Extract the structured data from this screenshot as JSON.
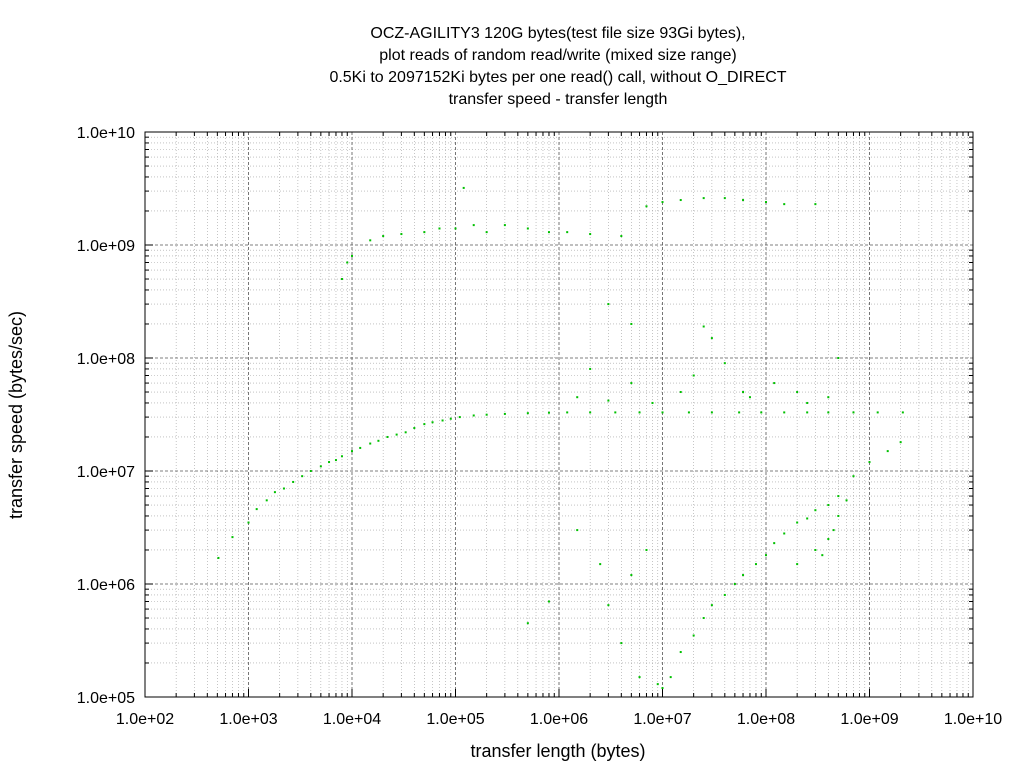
{
  "chart_data": {
    "type": "scatter",
    "title_lines": [
      "OCZ-AGILITY3 120G bytes(test file size 93Gi bytes),",
      "plot reads of random read/write (mixed size range)",
      "0.5Ki to 2097152Ki bytes per one read() call, without O_DIRECT",
      "transfer speed - transfer length"
    ],
    "xlabel": "transfer length (bytes)",
    "ylabel": "transfer speed (bytes/sec)",
    "x_scale": "log",
    "y_scale": "log",
    "xlim": [
      100,
      10000000000
    ],
    "ylim": [
      100000,
      10000000000
    ],
    "x_ticks": [
      {
        "value": 100,
        "label": "1.0e+02"
      },
      {
        "value": 1000,
        "label": "1.0e+03"
      },
      {
        "value": 10000,
        "label": "1.0e+04"
      },
      {
        "value": 100000,
        "label": "1.0e+05"
      },
      {
        "value": 1000000,
        "label": "1.0e+06"
      },
      {
        "value": 10000000,
        "label": "1.0e+07"
      },
      {
        "value": 100000000,
        "label": "1.0e+08"
      },
      {
        "value": 1000000000,
        "label": "1.0e+09"
      },
      {
        "value": 10000000000,
        "label": "1.0e+10"
      }
    ],
    "y_ticks": [
      {
        "value": 100000,
        "label": "1.0e+05"
      },
      {
        "value": 1000000,
        "label": "1.0e+06"
      },
      {
        "value": 10000000,
        "label": "1.0e+07"
      },
      {
        "value": 100000000,
        "label": "1.0e+08"
      },
      {
        "value": 1000000000,
        "label": "1.0e+09"
      },
      {
        "value": 10000000000,
        "label": "1.0e+10"
      }
    ],
    "grid": true,
    "point_color": "#00c000",
    "series": [
      {
        "values": [
          [
            512,
            1700000.0
          ],
          [
            700,
            2600000.0
          ],
          [
            1000,
            3500000.0
          ],
          [
            1200,
            4600000.0
          ],
          [
            1500,
            5500000.0
          ],
          [
            1800,
            6500000.0
          ],
          [
            2200,
            7000000.0
          ],
          [
            2700,
            8000000.0
          ],
          [
            3300,
            9000000.0
          ],
          [
            4000,
            10000000.0
          ],
          [
            5000,
            11000000.0
          ],
          [
            6000,
            12000000.0
          ],
          [
            7000,
            12500000.0
          ],
          [
            8000,
            13500000.0
          ],
          [
            10000,
            15000000.0
          ],
          [
            12000,
            16000000.0
          ],
          [
            15000,
            17500000.0
          ],
          [
            18000,
            18500000.0
          ],
          [
            22000,
            20000000.0
          ],
          [
            27000,
            21000000.0
          ],
          [
            33000,
            22000000.0
          ],
          [
            40000,
            24000000.0
          ],
          [
            50000,
            26000000.0
          ],
          [
            60000,
            27000000.0
          ],
          [
            75000,
            28000000.0
          ],
          [
            90000,
            29000000.0
          ],
          [
            110000,
            30000000.0
          ],
          [
            150000,
            31000000.0
          ],
          [
            200000,
            31500000.0
          ],
          [
            300000,
            32000000.0
          ],
          [
            500000,
            32500000.0
          ],
          [
            800000,
            32800000.0
          ],
          [
            1200000,
            33000000.0
          ],
          [
            2000000,
            33000000.0
          ],
          [
            3500000,
            33000000.0
          ],
          [
            6000000,
            33000000.0
          ],
          [
            10000000,
            33000000.0
          ],
          [
            18000000,
            33000000.0
          ],
          [
            30000000,
            33000000.0
          ],
          [
            55000000,
            33000000.0
          ],
          [
            90000000,
            33000000.0
          ],
          [
            150000000,
            33000000.0
          ],
          [
            250000000,
            33000000.0
          ],
          [
            400000000,
            33000000.0
          ],
          [
            700000000,
            33000000.0
          ],
          [
            1200000000,
            33000000.0
          ],
          [
            2100000000,
            33000000.0
          ],
          [
            8000,
            500000000.0
          ],
          [
            9000,
            700000000.0
          ],
          [
            10000,
            800000000.0
          ],
          [
            15000,
            1100000000.0
          ],
          [
            20000,
            1200000000.0
          ],
          [
            30000,
            1250000000.0
          ],
          [
            50000,
            1300000000.0
          ],
          [
            70000,
            1400000000.0
          ],
          [
            100000,
            1400000000.0
          ],
          [
            120000,
            3200000000.0
          ],
          [
            150000,
            1500000000.0
          ],
          [
            200000,
            1300000000.0
          ],
          [
            300000,
            1500000000.0
          ],
          [
            500000,
            1400000000.0
          ],
          [
            800000,
            1300000000.0
          ],
          [
            1200000,
            1300000000.0
          ],
          [
            2000000,
            1250000000.0
          ],
          [
            4000000,
            1200000000.0
          ],
          [
            7000000,
            2200000000.0
          ],
          [
            10000000,
            2400000000.0
          ],
          [
            15000000,
            2500000000.0
          ],
          [
            25000000,
            2600000000.0
          ],
          [
            40000000,
            2600000000.0
          ],
          [
            60000000,
            2500000000.0
          ],
          [
            100000000,
            2400000000.0
          ],
          [
            150000000,
            2300000000.0
          ],
          [
            300000000,
            2300000000.0
          ],
          [
            3000000,
            300000000.0
          ],
          [
            5000000,
            200000000.0
          ],
          [
            25000000,
            190000000.0
          ],
          [
            30000000,
            150000000.0
          ],
          [
            2000000,
            80000000.0
          ],
          [
            5000000,
            60000000.0
          ],
          [
            20000000,
            70000000.0
          ],
          [
            40000000,
            90000000.0
          ],
          [
            60000000,
            50000000.0
          ],
          [
            120000000,
            60000000.0
          ],
          [
            200000000,
            50000000.0
          ],
          [
            400000000,
            45000000.0
          ],
          [
            500000000,
            100000000.0
          ],
          [
            1500000,
            45000000.0
          ],
          [
            3000000,
            42000000.0
          ],
          [
            8000000,
            40000000.0
          ],
          [
            15000000,
            50000000.0
          ],
          [
            70000000,
            45000000.0
          ],
          [
            250000000,
            40000000.0
          ],
          [
            1000000000,
            12000000.0
          ],
          [
            1500000000,
            15000000.0
          ],
          [
            2000000000,
            18000000.0
          ],
          [
            700000000,
            9000000.0
          ],
          [
            500000000,
            6000000.0
          ],
          [
            400000000,
            5000000.0
          ],
          [
            300000000,
            4500000.0
          ],
          [
            250000000,
            3800000.0
          ],
          [
            200000000,
            3500000.0
          ],
          [
            150000000,
            2800000.0
          ],
          [
            120000000,
            2300000.0
          ],
          [
            100000000,
            1800000.0
          ],
          [
            80000000,
            1500000.0
          ],
          [
            60000000,
            1200000.0
          ],
          [
            50000000,
            1000000.0
          ],
          [
            40000000,
            800000.0
          ],
          [
            30000000,
            650000.0
          ],
          [
            25000000,
            500000.0
          ],
          [
            20000000,
            350000.0
          ],
          [
            15000000,
            250000.0
          ],
          [
            12000000,
            150000.0
          ],
          [
            300000000,
            2000000.0
          ],
          [
            400000000,
            2500000.0
          ],
          [
            450000000,
            3000000.0
          ],
          [
            350000000,
            1800000.0
          ],
          [
            200000000,
            1500000.0
          ],
          [
            500000000,
            4000000.0
          ],
          [
            600000000,
            5500000.0
          ],
          [
            500000,
            450000.0
          ],
          [
            4000000,
            300000.0
          ],
          [
            6000000,
            150000.0
          ],
          [
            10000000,
            120000.0
          ],
          [
            3000000,
            650000.0
          ],
          [
            800000,
            700000.0
          ],
          [
            5000000,
            1200000.0
          ],
          [
            2500000,
            1500000.0
          ],
          [
            1500000,
            3000000.0
          ],
          [
            7000000,
            2000000.0
          ],
          [
            9000000,
            130000.0
          ]
        ]
      }
    ]
  }
}
